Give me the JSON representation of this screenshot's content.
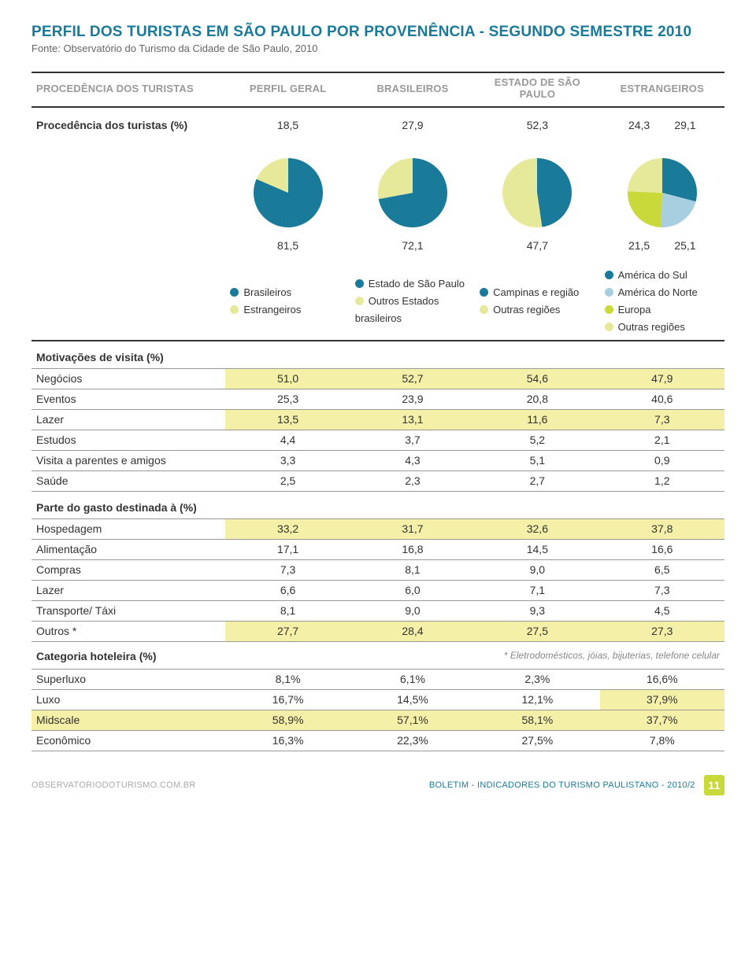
{
  "title": "PERFIL DOS TURISTAS EM SÃO PAULO POR PROVENÊNCIA - SEGUNDO SEMESTRE 2010",
  "subtitle": "Fonte: Observatório do Turismo da Cidade de São Paulo, 2010",
  "columns": {
    "c0": "PROCEDÊNCIA DOS TURISTAS",
    "c1": "PERFIL GERAL",
    "c2": "BRASILEIROS",
    "c3": "ESTADO DE SÃO PAULO",
    "c4": "ESTRANGEIROS"
  },
  "colors": {
    "teal": "#1a7a99",
    "lime": "#e7e99a",
    "lime_solid": "#c9d93a",
    "lightblue": "#a7cfe0",
    "row_hl": "#f5f0a8",
    "gridline": "#999999",
    "text": "#333333",
    "muted": "#999999",
    "background": "#ffffff"
  },
  "procedencia": {
    "label": "Procedência dos turistas (%)",
    "top": [
      "18,5",
      "27,9",
      "52,3",
      "24,3",
      "29,1"
    ],
    "bottom": [
      "81,5",
      "72,1",
      "47,7",
      "21,5",
      "25,1"
    ]
  },
  "pies": [
    {
      "type": "pie",
      "slices": [
        {
          "value": 81.5,
          "color": "#1a7a99"
        },
        {
          "value": 18.5,
          "color": "#e7e99a"
        }
      ]
    },
    {
      "type": "pie",
      "slices": [
        {
          "value": 72.1,
          "color": "#1a7a99"
        },
        {
          "value": 27.9,
          "color": "#e7e99a"
        }
      ]
    },
    {
      "type": "pie",
      "slices": [
        {
          "value": 47.7,
          "color": "#1a7a99"
        },
        {
          "value": 52.3,
          "color": "#e7e99a"
        }
      ]
    },
    {
      "type": "pie",
      "slices": [
        {
          "value": 29.1,
          "color": "#1a7a99"
        },
        {
          "value": 21.5,
          "color": "#a7cfe0"
        },
        {
          "value": 25.1,
          "color": "#c9d93a"
        },
        {
          "value": 24.3,
          "color": "#e7e99a"
        }
      ]
    }
  ],
  "pie_style": {
    "diameter": 88,
    "start_angle_deg": -90
  },
  "legends": [
    [
      {
        "color": "#1a7a99",
        "label": "Brasileiros"
      },
      {
        "color": "#e7e99a",
        "label": "Estrangeiros"
      }
    ],
    [
      {
        "color": "#1a7a99",
        "label": "Estado de São Paulo"
      },
      {
        "color": "#e7e99a",
        "label": "Outros Estados brasileiros"
      }
    ],
    [
      {
        "color": "#1a7a99",
        "label": "Campinas e região"
      },
      {
        "color": "#e7e99a",
        "label": "Outras regiões"
      }
    ],
    [
      {
        "color": "#1a7a99",
        "label": "América do Sul"
      },
      {
        "color": "#a7cfe0",
        "label": "América do Norte"
      },
      {
        "color": "#c9d93a",
        "label": "Europa"
      },
      {
        "color": "#e7e99a",
        "label": "Outras regiões"
      }
    ]
  ],
  "sections": {
    "motivacoes": {
      "label": "Motivações de visita (%)",
      "rows": [
        {
          "label": "Negócios",
          "vals": [
            "51,0",
            "52,7",
            "54,6",
            "47,9"
          ],
          "hl": true
        },
        {
          "label": "Eventos",
          "vals": [
            "25,3",
            "23,9",
            "20,8",
            "40,6"
          ],
          "hl": false
        },
        {
          "label": "Lazer",
          "vals": [
            "13,5",
            "13,1",
            "11,6",
            "7,3"
          ],
          "hl": true
        },
        {
          "label": "Estudos",
          "vals": [
            "4,4",
            "3,7",
            "5,2",
            "2,1"
          ],
          "hl": false
        },
        {
          "label": "Visita a parentes e amigos",
          "vals": [
            "3,3",
            "4,3",
            "5,1",
            "0,9"
          ],
          "hl": false
        },
        {
          "label": "Saúde",
          "vals": [
            "2,5",
            "2,3",
            "2,7",
            "1,2"
          ],
          "hl": false
        }
      ]
    },
    "gasto": {
      "label": "Parte do gasto destinada à (%)",
      "rows": [
        {
          "label": "Hospedagem",
          "vals": [
            "33,2",
            "31,7",
            "32,6",
            "37,8"
          ],
          "hl": true
        },
        {
          "label": "Alimentação",
          "vals": [
            "17,1",
            "16,8",
            "14,5",
            "16,6"
          ],
          "hl": false
        },
        {
          "label": "Compras",
          "vals": [
            "7,3",
            "8,1",
            "9,0",
            "6,5"
          ],
          "hl": false
        },
        {
          "label": "Lazer",
          "vals": [
            "6,6",
            "6,0",
            "7,1",
            "7,3"
          ],
          "hl": false
        },
        {
          "label": "Transporte/ Táxi",
          "vals": [
            "8,1",
            "9,0",
            "9,3",
            "4,5"
          ],
          "hl": false
        },
        {
          "label": "Outros *",
          "vals": [
            "27,7",
            "28,4",
            "27,5",
            "27,3"
          ],
          "hl": true
        }
      ],
      "footnote": "* Eletrodomésticos, jóias, bijuterias, telefone celular"
    },
    "hoteleira": {
      "label": "Categoria hoteleira (%)",
      "rows": [
        {
          "label": "Superluxo",
          "vals": [
            "8,1%",
            "6,1%",
            "2,3%",
            "16,6%"
          ],
          "hl": false
        },
        {
          "label": "Luxo",
          "vals": [
            "16,7%",
            "14,5%",
            "12,1%",
            "37,9%"
          ],
          "hl": [
            false,
            false,
            false,
            true
          ]
        },
        {
          "label": "Midscale",
          "vals": [
            "58,9%",
            "57,1%",
            "58,1%",
            "37,7%"
          ],
          "hl": [
            true,
            true,
            true,
            true
          ],
          "row_hl": true
        },
        {
          "label": "Econômico",
          "vals": [
            "16,3%",
            "22,3%",
            "27,5%",
            "7,8%"
          ],
          "hl": false
        }
      ]
    }
  },
  "footer": {
    "left": "OBSERVATORIODOTURISMO.COM.BR",
    "right": "BOLETIM - INDICADORES DO TURISMO PAULISTANO - 2010/2",
    "page": "11"
  }
}
